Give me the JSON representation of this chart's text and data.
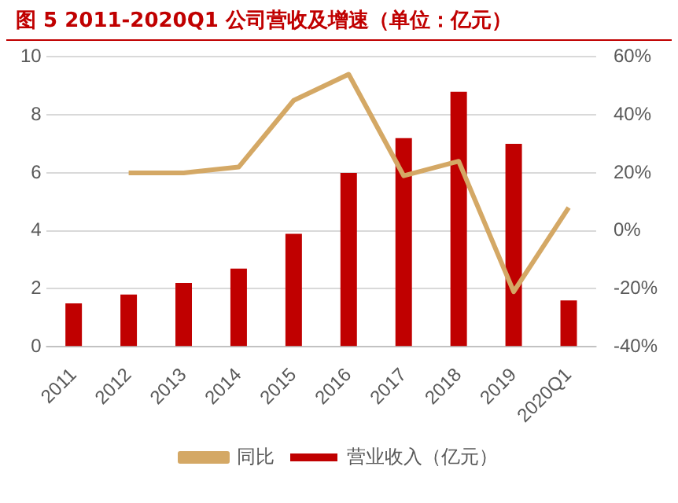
{
  "chart_data": {
    "type": "bar",
    "title": "图 5  2011-2020Q1 公司营收及增速（单位：亿元）",
    "categories": [
      "2011",
      "2012",
      "2013",
      "2014",
      "2015",
      "2016",
      "2017",
      "2018",
      "2019",
      "2020Q1"
    ],
    "series": [
      {
        "name": "营业收入（亿元）",
        "color": "#c00000",
        "values": [
          1.5,
          1.8,
          2.2,
          2.7,
          3.9,
          6.0,
          7.2,
          8.8,
          7.0,
          1.6
        ]
      },
      {
        "name": "同比",
        "type": "line",
        "axis": "y2",
        "color": "#d4a865",
        "values": [
          null,
          20,
          20,
          22,
          45,
          54,
          19,
          24,
          -21,
          8
        ]
      }
    ],
    "ylim": [
      0,
      10
    ],
    "yticks": [
      0,
      2,
      4,
      6,
      8,
      10
    ],
    "y2lim": [
      -40,
      60
    ],
    "y2ticks": [
      {
        "value": -40,
        "label": "-40%"
      },
      {
        "value": -20,
        "label": "-20%"
      },
      {
        "value": 0,
        "label": "0%"
      },
      {
        "value": 20,
        "label": "20%"
      },
      {
        "value": 40,
        "label": "40%"
      },
      {
        "value": 60,
        "label": "60%"
      }
    ],
    "grid": "y",
    "legend": "bottom",
    "marker": "none"
  }
}
